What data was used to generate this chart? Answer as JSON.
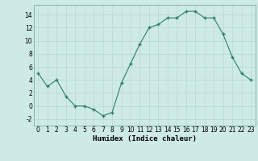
{
  "x": [
    0,
    1,
    2,
    3,
    4,
    5,
    6,
    7,
    8,
    9,
    10,
    11,
    12,
    13,
    14,
    15,
    16,
    17,
    18,
    19,
    20,
    21,
    22,
    23
  ],
  "y": [
    5,
    3,
    4,
    1.5,
    0,
    0,
    -0.5,
    -1.5,
    -1,
    3.5,
    6.5,
    9.5,
    12,
    12.5,
    13.5,
    13.5,
    14.5,
    14.5,
    13.5,
    13.5,
    11,
    7.5,
    5,
    4
  ],
  "line_color": "#2e7d6e",
  "marker_color": "#2e7d6e",
  "bg_color": "#ceeae6",
  "grid_color": "#b8d8d4",
  "xlabel": "Humidex (Indice chaleur)",
  "xlim": [
    -0.5,
    23.5
  ],
  "ylim": [
    -3,
    15.5
  ],
  "yticks": [
    -2,
    0,
    2,
    4,
    6,
    8,
    10,
    12,
    14
  ],
  "xticks": [
    0,
    1,
    2,
    3,
    4,
    5,
    6,
    7,
    8,
    9,
    10,
    11,
    12,
    13,
    14,
    15,
    16,
    17,
    18,
    19,
    20,
    21,
    22,
    23
  ],
  "xtick_labels": [
    "0",
    "1",
    "2",
    "3",
    "4",
    "5",
    "6",
    "7",
    "8",
    "9",
    "10",
    "11",
    "12",
    "13",
    "14",
    "15",
    "16",
    "17",
    "18",
    "19",
    "20",
    "21",
    "22",
    "23"
  ],
  "axis_fontsize": 6.5,
  "tick_fontsize": 5.5
}
